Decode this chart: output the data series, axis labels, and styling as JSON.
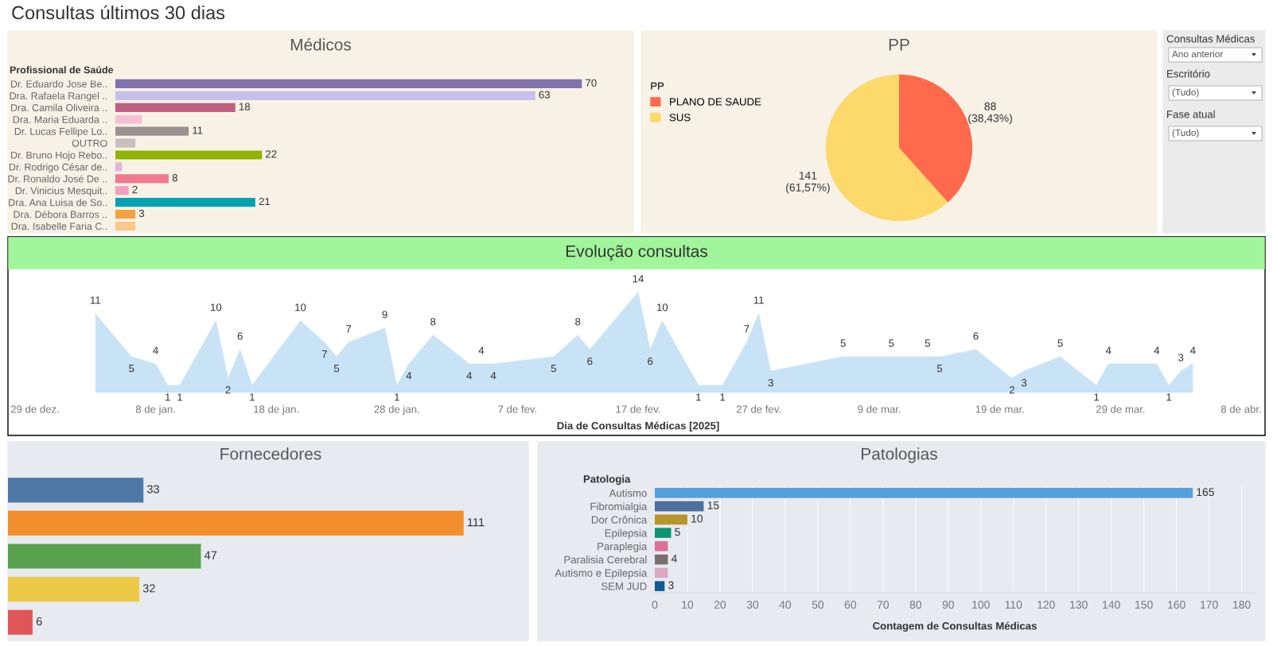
{
  "chart_data": [
    {
      "type": "other",
      "title": "Consultas últimos 30 dias"
    },
    {
      "type": "bar",
      "orientation": "horizontal",
      "title": "Médicos",
      "ylabel": "Profissional de Saúde",
      "tick_labels": "y",
      "categories": [
        "Dr. Eduardo Jose Be..",
        "Dra. Rafaela Rangel ..",
        "Dra. Camila Oliveira ..",
        "Dra. Maria Eduarda ..",
        "Dr. Lucas Fellipe Lo..",
        "OUTRO",
        "Dr. Bruno Hojo Rebo..",
        "Dr. Rodrigo César de..",
        "Dr. Ronaldo José De ..",
        "Dr. Vinicius Mesquit..",
        "Dra. Ana Luisa de So..",
        "Dra. Débora Barros ..",
        "Dra. Isabelle Faria C.."
      ],
      "values": [
        70,
        63,
        18,
        4,
        11,
        3,
        22,
        1,
        8,
        2,
        21,
        3,
        3
      ],
      "value_labels": [
        "70",
        "63",
        "18",
        null,
        "11",
        null,
        "22",
        null,
        "8",
        "2",
        "21",
        "3",
        null
      ],
      "colors": [
        "#8073ac",
        "#c6c0ea",
        "#c06081",
        "#f8bfd4",
        "#9a9190",
        "#c9bebe",
        "#8fb300",
        "#e3b3df",
        "#ef7a90",
        "#f1a1bd",
        "#04a2b1",
        "#f1a342",
        "#f8c98b"
      ]
    },
    {
      "type": "pie",
      "title": "PP",
      "legend_title": "PP",
      "legend": "left",
      "categories": [
        "PLANO DE SAUDE",
        "SUS"
      ],
      "values": [
        88,
        141
      ],
      "value_labels": [
        "88\n(38,43%)",
        "141\n(61,57%)"
      ],
      "colors": [
        "#ff6a4d",
        "#fdd86a"
      ]
    },
    {
      "type": "other",
      "annotations": [
        "Consultas Médicas",
        "Ano anterior",
        "Escritório",
        "(Tudo)",
        "Fase atual",
        "(Tudo)"
      ]
    },
    {
      "type": "area",
      "title": "Evolução consultas",
      "xlabel": "Dia de Consultas Médicas [2025]",
      "tick_labels": "x",
      "data_labels": true,
      "color": "#c9e3f6",
      "x": [
        "2025-01-03",
        "2025-01-06",
        "2025-01-08",
        "2025-01-09",
        "2025-01-10",
        "2025-01-13",
        "2025-01-14",
        "2025-01-15",
        "2025-01-16",
        "2025-01-20",
        "2025-01-22",
        "2025-01-23",
        "2025-01-24",
        "2025-01-27",
        "2025-01-28",
        "2025-01-29",
        "2025-01-31",
        "2025-02-03",
        "2025-02-04",
        "2025-02-05",
        "2025-02-10",
        "2025-02-12",
        "2025-02-13",
        "2025-02-17",
        "2025-02-18",
        "2025-02-19",
        "2025-02-22",
        "2025-02-24",
        "2025-02-26",
        "2025-02-27",
        "2025-02-28",
        "2025-03-06",
        "2025-03-10",
        "2025-03-13",
        "2025-03-14",
        "2025-03-17",
        "2025-03-20",
        "2025-03-21",
        "2025-03-24",
        "2025-03-27",
        "2025-03-28",
        "2025-04-01",
        "2025-04-02",
        "2025-04-03",
        "2025-04-04"
      ],
      "values": [
        11,
        5,
        4,
        1,
        1,
        10,
        2,
        6,
        1,
        10,
        7,
        5,
        7,
        9,
        1,
        4,
        8,
        4,
        4,
        4,
        5,
        8,
        6,
        14,
        6,
        10,
        1,
        1,
        7,
        11,
        3,
        5,
        5,
        5,
        5,
        6,
        2,
        3,
        5,
        1,
        4,
        4,
        1,
        3,
        4
      ],
      "xlim": [
        "2024-12-29",
        "2025-04-08"
      ],
      "xticks": [
        {
          "value": "2024-12-29",
          "label": "29 de dez."
        },
        {
          "value": "2025-01-08",
          "label": "8 de jan."
        },
        {
          "value": "2025-01-18",
          "label": "18 de jan."
        },
        {
          "value": "2025-01-28",
          "label": "28 de jan."
        },
        {
          "value": "2025-02-07",
          "label": "7 de fev."
        },
        {
          "value": "2025-02-17",
          "label": "17 de fev."
        },
        {
          "value": "2025-02-27",
          "label": "27 de fev."
        },
        {
          "value": "2025-03-09",
          "label": "9 de mar."
        },
        {
          "value": "2025-03-19",
          "label": "19 de mar."
        },
        {
          "value": "2025-03-29",
          "label": "29 de mar."
        },
        {
          "value": "2025-04-08",
          "label": "8 de abr."
        }
      ]
    },
    {
      "type": "bar",
      "orientation": "horizontal",
      "title": "Fornecedores",
      "tick_labels": false,
      "data_labels": true,
      "categories": [
        null,
        null,
        null,
        null,
        null
      ],
      "values": [
        33,
        111,
        47,
        32,
        6
      ],
      "colors": [
        "#4e79a7",
        "#f28e2b",
        "#59a14f",
        "#edc948",
        "#e15759"
      ]
    },
    {
      "type": "bar",
      "orientation": "horizontal",
      "title": "Patologias",
      "ylabel": "Patologia",
      "xlabel": "Contagem de Consultas Médicas",
      "grid": "x",
      "categories": [
        "Autismo",
        "Fibromialgia",
        "Dor Crônica",
        "Epilepsia",
        "Paraplegia",
        "Paralisia Cerebral",
        "Autismo e Epilepsia",
        "SEM JUD"
      ],
      "values": [
        165,
        15,
        10,
        5,
        4,
        4,
        4,
        3
      ],
      "value_labels": [
        "165",
        "15",
        "10",
        "5",
        null,
        "4",
        null,
        "3"
      ],
      "colors": [
        "#559fdf",
        "#4e6f9e",
        "#b8962e",
        "#0b9670",
        "#dd7096",
        "#7a6e6f",
        "#dba8c4",
        "#0e5b94"
      ],
      "xlim": [
        0,
        184
      ],
      "xticks": [
        0,
        10,
        20,
        30,
        40,
        50,
        60,
        70,
        80,
        90,
        100,
        110,
        120,
        130,
        140,
        150,
        160,
        170,
        180
      ]
    }
  ]
}
